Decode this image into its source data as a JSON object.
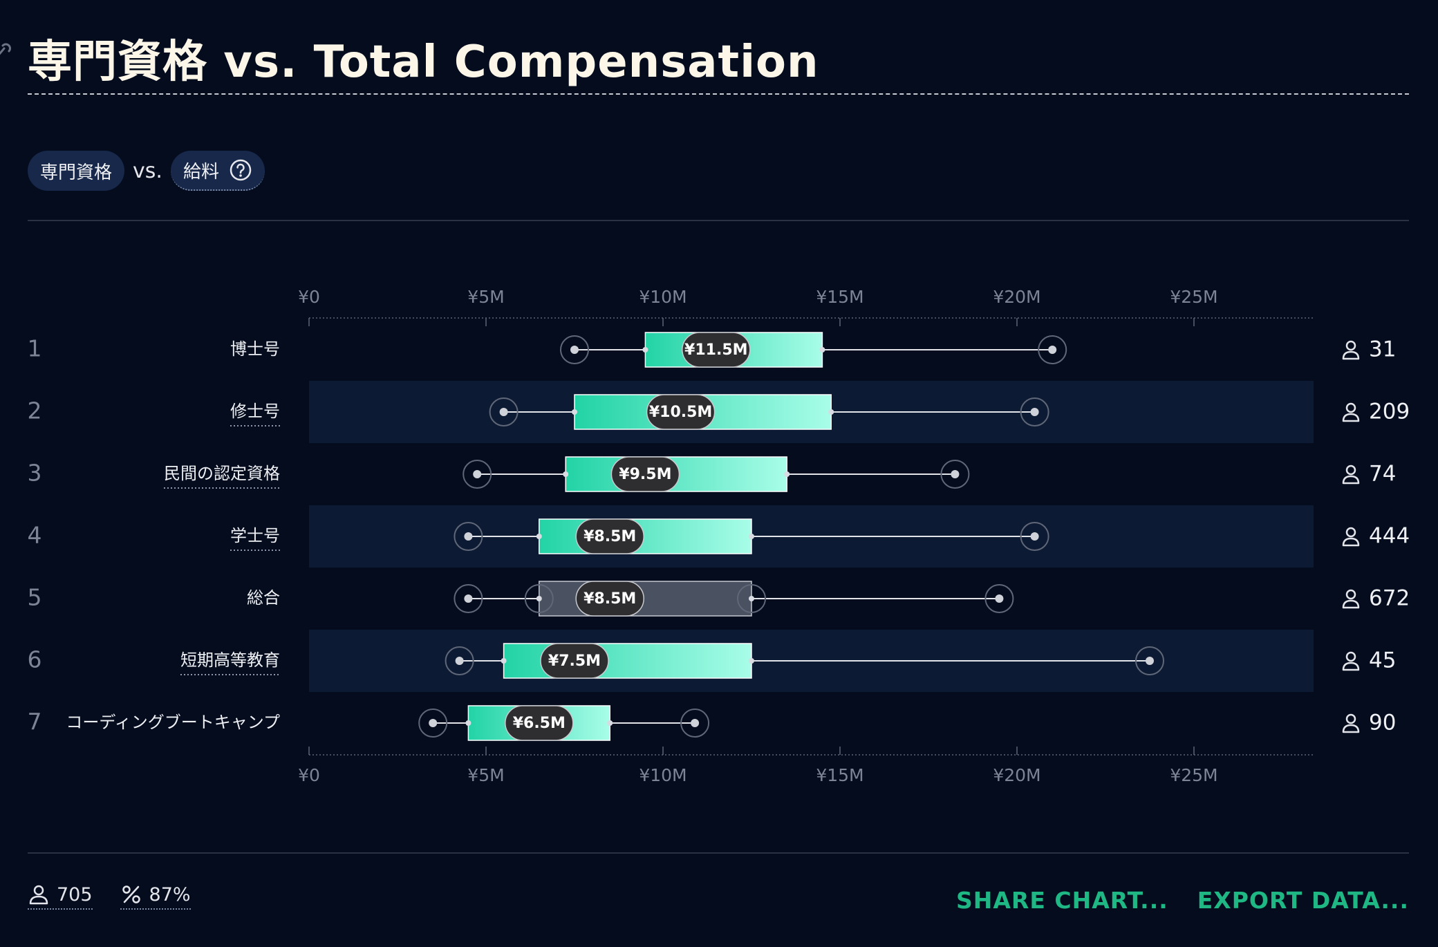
{
  "header": {
    "title": "専門資格 vs. Total Compensation"
  },
  "filters": {
    "left_label": "専門資格",
    "vs_label": "vs.",
    "right_label": "給料"
  },
  "footer": {
    "respondents": "705",
    "percent": "87%"
  },
  "actions": {
    "share_label": "SHARE CHART...",
    "export_label": "EXPORT DATA..."
  },
  "colors": {
    "accent": "#1fb784",
    "box_start": "#22d3a6",
    "box_end": "#a8fde8",
    "overall_box": "#4a5262",
    "band": "#0d1a33"
  },
  "chart_data": {
    "type": "boxplot",
    "title": "専門資格 vs. Total Compensation",
    "xlabel": "",
    "ylabel": "",
    "x_ticks": [
      "¥0",
      "¥5M",
      "¥10M",
      "¥15M",
      "¥20M",
      "¥25M"
    ],
    "x_tick_values": [
      0,
      5,
      10,
      15,
      20,
      25
    ],
    "x_unit": "¥M",
    "xlim": [
      0,
      28.4
    ],
    "rows": [
      {
        "rank": "1",
        "category": "博士号",
        "p10": 7.5,
        "p25": 9.5,
        "median": 11.5,
        "median_label": "¥11.5M",
        "p75": 14.5,
        "p90": 21.0,
        "count": "31",
        "underlined": false,
        "overall": false
      },
      {
        "rank": "2",
        "category": "修士号",
        "p10": 5.5,
        "p25": 7.5,
        "median": 10.5,
        "median_label": "¥10.5M",
        "p75": 14.75,
        "p90": 20.5,
        "count": "209",
        "underlined": true,
        "overall": false
      },
      {
        "rank": "3",
        "category": "民間の認定資格",
        "p10": 4.75,
        "p25": 7.25,
        "median": 9.5,
        "median_label": "¥9.5M",
        "p75": 13.5,
        "p90": 18.25,
        "count": "74",
        "underlined": true,
        "overall": false
      },
      {
        "rank": "4",
        "category": "学士号",
        "p10": 4.5,
        "p25": 6.5,
        "median": 8.5,
        "median_label": "¥8.5M",
        "p75": 12.5,
        "p90": 20.5,
        "count": "444",
        "underlined": true,
        "overall": false
      },
      {
        "rank": "5",
        "category": "総合",
        "p10": 4.5,
        "p25": 6.5,
        "median": 8.5,
        "median_label": "¥8.5M",
        "p75": 12.5,
        "p90": 19.5,
        "count": "672",
        "underlined": false,
        "overall": true
      },
      {
        "rank": "6",
        "category": "短期高等教育",
        "p10": 4.25,
        "p25": 5.5,
        "median": 7.5,
        "median_label": "¥7.5M",
        "p75": 12.5,
        "p90": 23.75,
        "count": "45",
        "underlined": true,
        "overall": false
      },
      {
        "rank": "7",
        "category": "コーディングブートキャンプ",
        "p10": 3.5,
        "p25": 4.5,
        "median": 6.5,
        "median_label": "¥6.5M",
        "p75": 8.5,
        "p90": 10.9,
        "count": "90",
        "underlined": false,
        "overall": false
      }
    ]
  }
}
